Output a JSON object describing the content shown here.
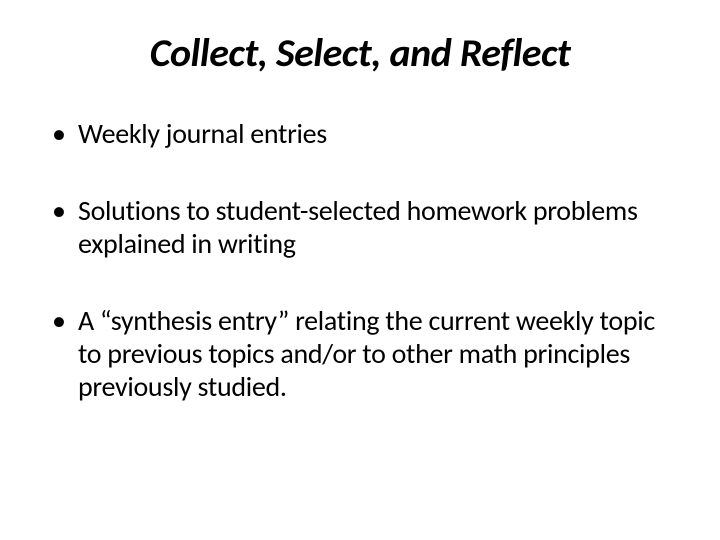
{
  "slide": {
    "title": "Collect, Select, and Reflect",
    "bullets": [
      "Weekly journal entries",
      "Solutions to student-selected homework problems explained in writing",
      "A “synthesis entry” relating the current weekly topic to previous topics and/or to other math principles previously studied."
    ],
    "colors": {
      "background": "#ffffff",
      "text": "#000000"
    },
    "typography": {
      "title_fontsize": 40,
      "title_weight": 700,
      "title_style": "italic",
      "body_fontsize": 28,
      "font_family": "Calibri"
    }
  }
}
